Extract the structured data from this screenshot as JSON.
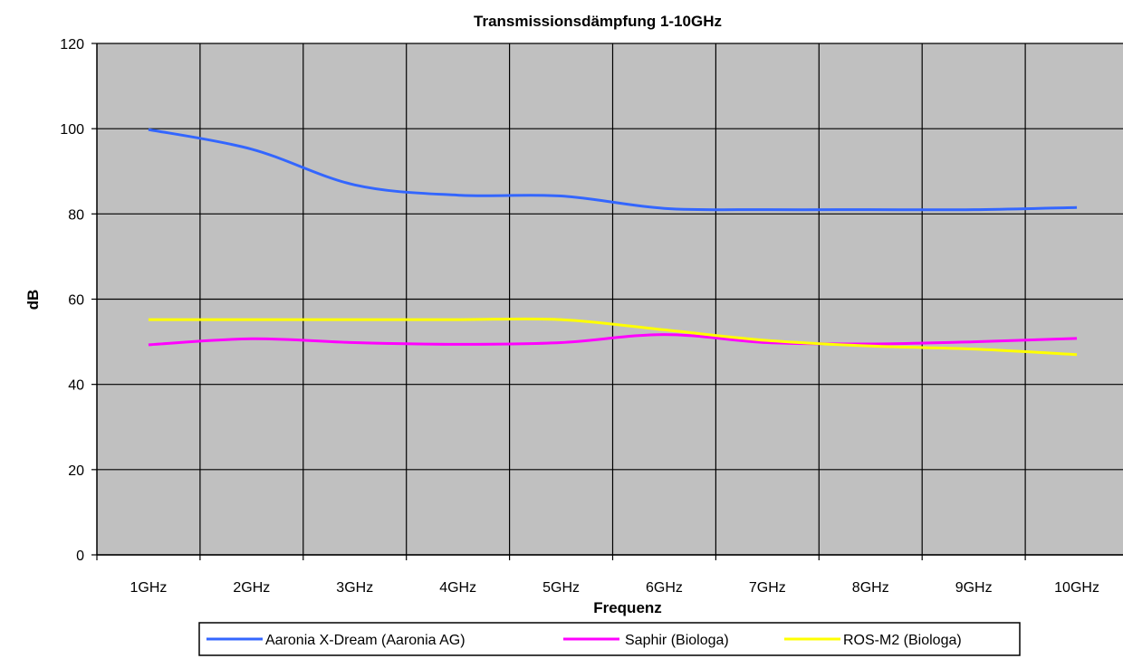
{
  "chart_data": {
    "type": "line",
    "title": "Transmissionsdämpfung 1-10GHz",
    "xlabel": "Frequenz",
    "ylabel": "dB",
    "categories": [
      "1GHz",
      "2GHz",
      "3GHz",
      "4GHz",
      "5GHz",
      "6GHz",
      "7GHz",
      "8GHz",
      "9GHz",
      "10GHz"
    ],
    "ylim": [
      0,
      120
    ],
    "yticks": [
      "0",
      "20",
      "40",
      "60",
      "80",
      "100",
      "120"
    ],
    "grid": true,
    "plot_background": "#c0c0c0",
    "legend_position": "bottom",
    "series": [
      {
        "name": "Aaronia X-Dream (Aaronia AG)",
        "color": "#3366ff",
        "values": [
          99.8,
          95.2,
          86.8,
          84.4,
          84.2,
          81.3,
          81.0,
          81.0,
          81.0,
          81.5
        ]
      },
      {
        "name": "Saphir (Biologa)",
        "color": "#ff00ff",
        "values": [
          49.3,
          50.7,
          49.8,
          49.4,
          49.8,
          51.7,
          49.8,
          49.5,
          50.0,
          50.8
        ]
      },
      {
        "name": "ROS-M2 (Biologa)",
        "color": "#ffff00",
        "values": [
          55.2,
          55.2,
          55.2,
          55.2,
          55.2,
          52.8,
          50.3,
          49.0,
          48.3,
          47.0
        ]
      }
    ]
  }
}
